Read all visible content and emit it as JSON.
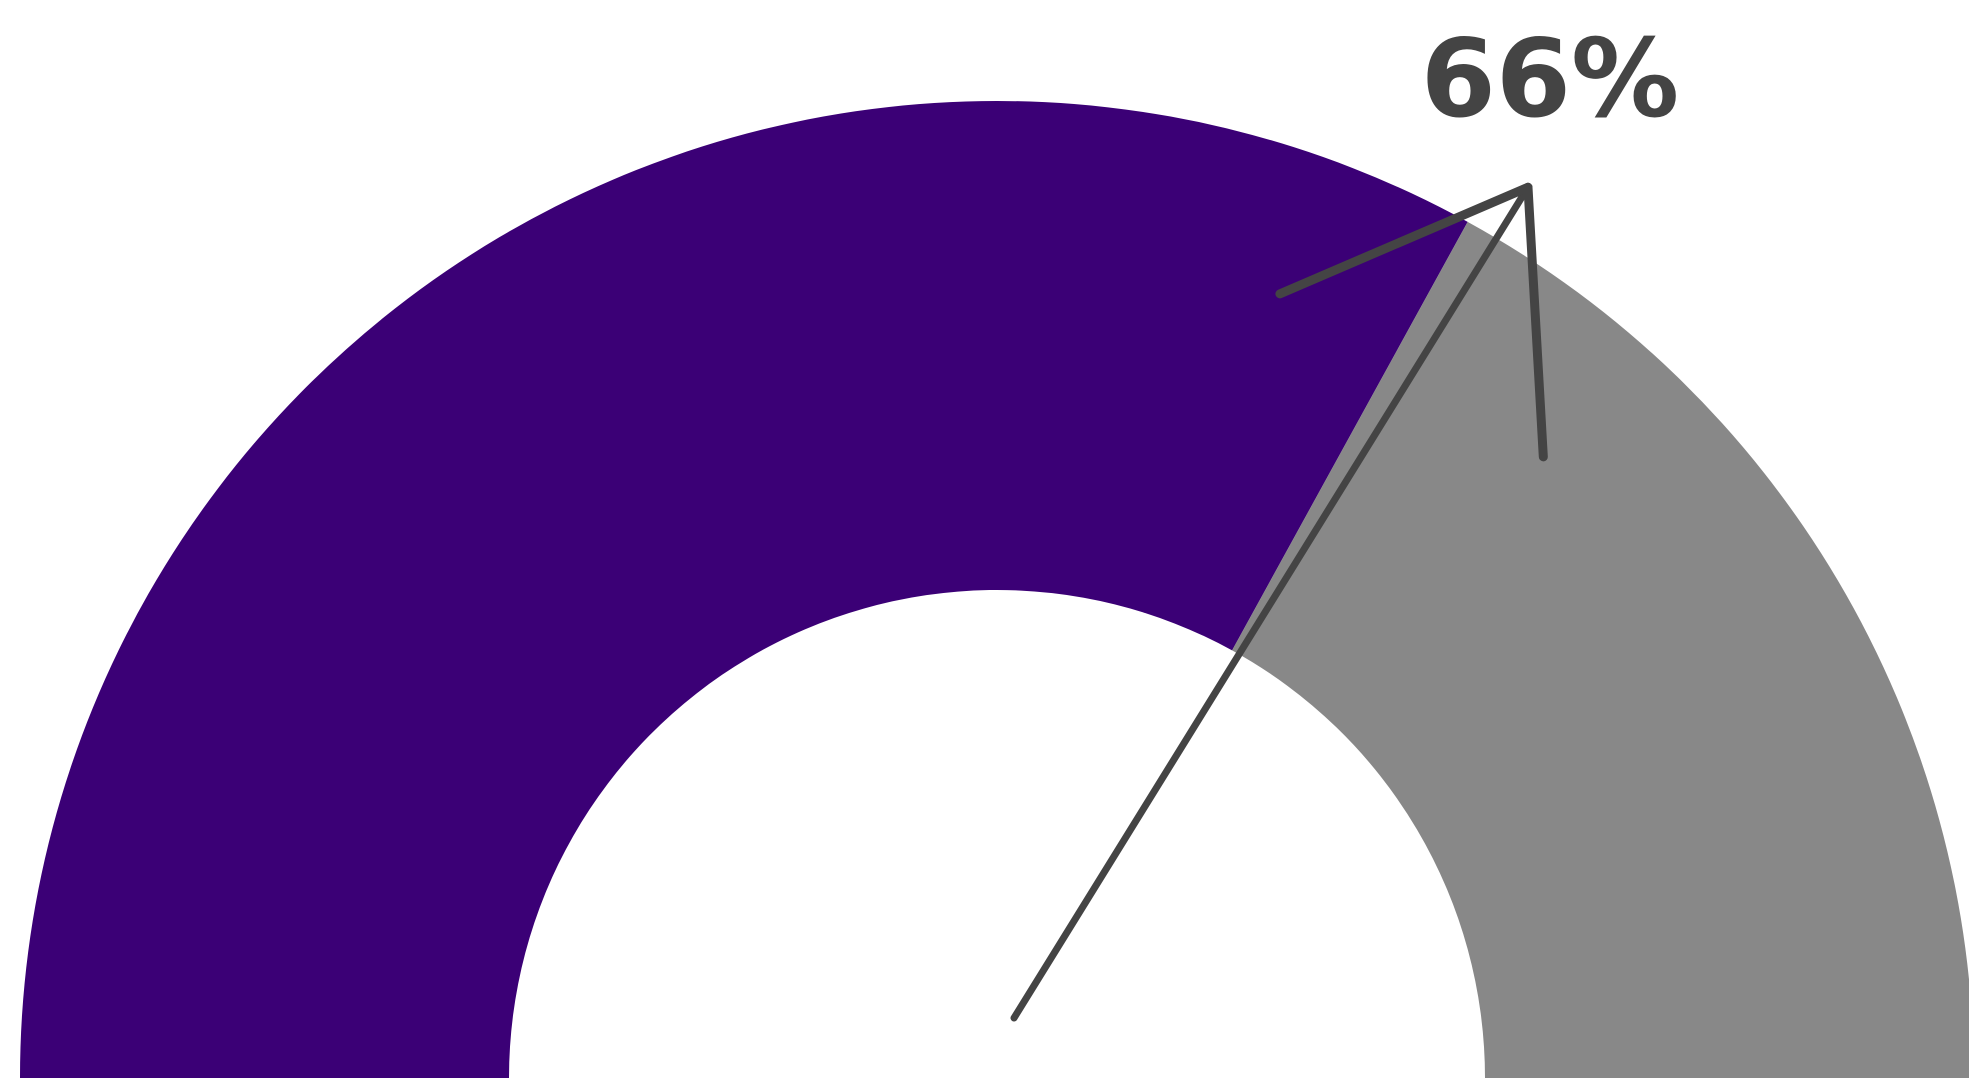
{
  "chart_data": {
    "type": "gauge",
    "value": 0.66,
    "value_label": "66%",
    "range": [
      0,
      1
    ],
    "colors": {
      "filled": "#3b0076",
      "remaining": "#888888",
      "arrow": "#444444",
      "label": "#444444"
    }
  }
}
